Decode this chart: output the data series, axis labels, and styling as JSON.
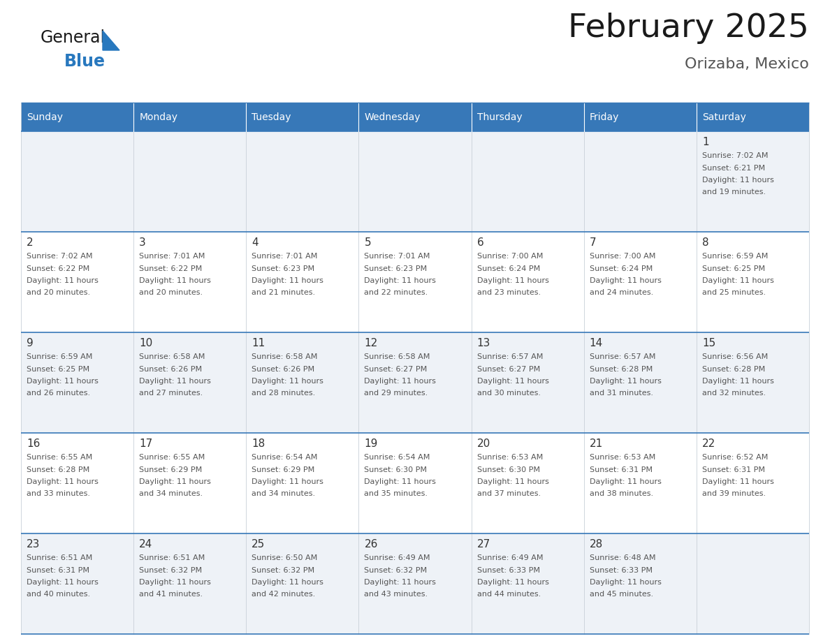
{
  "title": "February 2025",
  "subtitle": "Orizaba, Mexico",
  "header_color": "#3778b8",
  "header_text_color": "#ffffff",
  "days_of_week": [
    "Sunday",
    "Monday",
    "Tuesday",
    "Wednesday",
    "Thursday",
    "Friday",
    "Saturday"
  ],
  "background_color": "#ffffff",
  "cell_bg_even": "#eef2f7",
  "cell_bg_odd": "#ffffff",
  "border_color": "#3778b8",
  "day_number_color": "#333333",
  "info_text_color": "#555555",
  "logo_general_color": "#1a1a1a",
  "logo_blue_color": "#2878be",
  "weeks": [
    [
      null,
      null,
      null,
      null,
      null,
      null,
      1
    ],
    [
      2,
      3,
      4,
      5,
      6,
      7,
      8
    ],
    [
      9,
      10,
      11,
      12,
      13,
      14,
      15
    ],
    [
      16,
      17,
      18,
      19,
      20,
      21,
      22
    ],
    [
      23,
      24,
      25,
      26,
      27,
      28,
      null
    ]
  ],
  "day_data": {
    "1": {
      "sunrise": "7:02 AM",
      "sunset": "6:21 PM",
      "daylight_hours": 11,
      "daylight_minutes": 19
    },
    "2": {
      "sunrise": "7:02 AM",
      "sunset": "6:22 PM",
      "daylight_hours": 11,
      "daylight_minutes": 20
    },
    "3": {
      "sunrise": "7:01 AM",
      "sunset": "6:22 PM",
      "daylight_hours": 11,
      "daylight_minutes": 20
    },
    "4": {
      "sunrise": "7:01 AM",
      "sunset": "6:23 PM",
      "daylight_hours": 11,
      "daylight_minutes": 21
    },
    "5": {
      "sunrise": "7:01 AM",
      "sunset": "6:23 PM",
      "daylight_hours": 11,
      "daylight_minutes": 22
    },
    "6": {
      "sunrise": "7:00 AM",
      "sunset": "6:24 PM",
      "daylight_hours": 11,
      "daylight_minutes": 23
    },
    "7": {
      "sunrise": "7:00 AM",
      "sunset": "6:24 PM",
      "daylight_hours": 11,
      "daylight_minutes": 24
    },
    "8": {
      "sunrise": "6:59 AM",
      "sunset": "6:25 PM",
      "daylight_hours": 11,
      "daylight_minutes": 25
    },
    "9": {
      "sunrise": "6:59 AM",
      "sunset": "6:25 PM",
      "daylight_hours": 11,
      "daylight_minutes": 26
    },
    "10": {
      "sunrise": "6:58 AM",
      "sunset": "6:26 PM",
      "daylight_hours": 11,
      "daylight_minutes": 27
    },
    "11": {
      "sunrise": "6:58 AM",
      "sunset": "6:26 PM",
      "daylight_hours": 11,
      "daylight_minutes": 28
    },
    "12": {
      "sunrise": "6:58 AM",
      "sunset": "6:27 PM",
      "daylight_hours": 11,
      "daylight_minutes": 29
    },
    "13": {
      "sunrise": "6:57 AM",
      "sunset": "6:27 PM",
      "daylight_hours": 11,
      "daylight_minutes": 30
    },
    "14": {
      "sunrise": "6:57 AM",
      "sunset": "6:28 PM",
      "daylight_hours": 11,
      "daylight_minutes": 31
    },
    "15": {
      "sunrise": "6:56 AM",
      "sunset": "6:28 PM",
      "daylight_hours": 11,
      "daylight_minutes": 32
    },
    "16": {
      "sunrise": "6:55 AM",
      "sunset": "6:28 PM",
      "daylight_hours": 11,
      "daylight_minutes": 33
    },
    "17": {
      "sunrise": "6:55 AM",
      "sunset": "6:29 PM",
      "daylight_hours": 11,
      "daylight_minutes": 34
    },
    "18": {
      "sunrise": "6:54 AM",
      "sunset": "6:29 PM",
      "daylight_hours": 11,
      "daylight_minutes": 34
    },
    "19": {
      "sunrise": "6:54 AM",
      "sunset": "6:30 PM",
      "daylight_hours": 11,
      "daylight_minutes": 35
    },
    "20": {
      "sunrise": "6:53 AM",
      "sunset": "6:30 PM",
      "daylight_hours": 11,
      "daylight_minutes": 37
    },
    "21": {
      "sunrise": "6:53 AM",
      "sunset": "6:31 PM",
      "daylight_hours": 11,
      "daylight_minutes": 38
    },
    "22": {
      "sunrise": "6:52 AM",
      "sunset": "6:31 PM",
      "daylight_hours": 11,
      "daylight_minutes": 39
    },
    "23": {
      "sunrise": "6:51 AM",
      "sunset": "6:31 PM",
      "daylight_hours": 11,
      "daylight_minutes": 40
    },
    "24": {
      "sunrise": "6:51 AM",
      "sunset": "6:32 PM",
      "daylight_hours": 11,
      "daylight_minutes": 41
    },
    "25": {
      "sunrise": "6:50 AM",
      "sunset": "6:32 PM",
      "daylight_hours": 11,
      "daylight_minutes": 42
    },
    "26": {
      "sunrise": "6:49 AM",
      "sunset": "6:32 PM",
      "daylight_hours": 11,
      "daylight_minutes": 43
    },
    "27": {
      "sunrise": "6:49 AM",
      "sunset": "6:33 PM",
      "daylight_hours": 11,
      "daylight_minutes": 44
    },
    "28": {
      "sunrise": "6:48 AM",
      "sunset": "6:33 PM",
      "daylight_hours": 11,
      "daylight_minutes": 45
    }
  }
}
